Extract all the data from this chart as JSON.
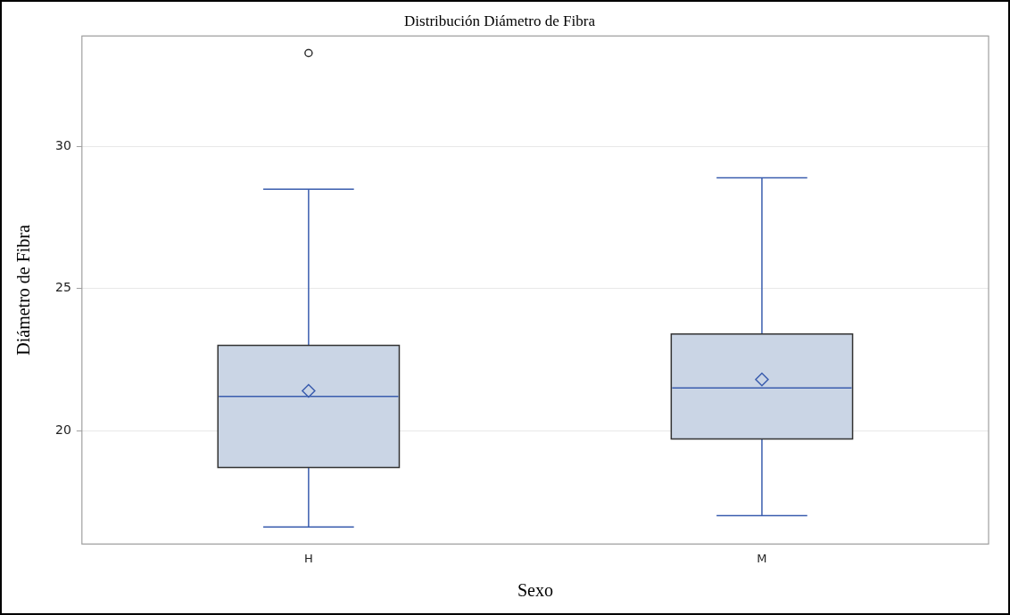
{
  "chart_data": {
    "type": "box",
    "title": "Distribución Diámetro de Fibra",
    "xlabel": "Sexo",
    "ylabel": "Diámetro de Fibra",
    "categories": [
      "H",
      "M"
    ],
    "boxes": [
      {
        "low": 16.6,
        "q1": 18.7,
        "median": 21.2,
        "q3": 23.0,
        "high": 28.5,
        "mean": 21.4,
        "outliers": [
          33.3
        ]
      },
      {
        "low": 17.0,
        "q1": 19.7,
        "median": 21.5,
        "q3": 23.4,
        "high": 28.9,
        "mean": 21.8
      }
    ],
    "color": "#cad5e5",
    "ylim": [
      16,
      33.9
    ],
    "yticks": [
      20,
      25,
      30
    ],
    "grid": "y",
    "legend": false
  }
}
